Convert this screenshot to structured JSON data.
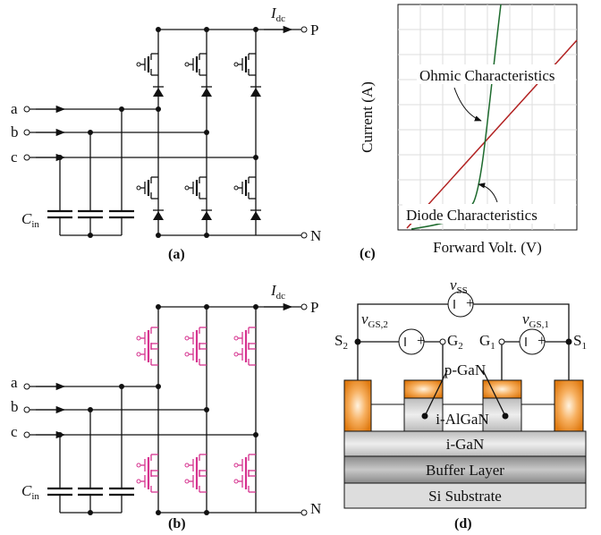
{
  "panel_a": {
    "label": "(a)",
    "current": {
      "main": "I",
      "sub": "dc"
    },
    "p": "P",
    "n": "N",
    "inputs": [
      "a",
      "b",
      "c"
    ],
    "cap": {
      "main": "C",
      "sub": "in"
    }
  },
  "panel_b": {
    "label": "(b)",
    "current": {
      "main": "I",
      "sub": "dc"
    },
    "p": "P",
    "n": "N",
    "inputs": [
      "a",
      "b",
      "c"
    ],
    "cap": {
      "main": "C",
      "sub": "in"
    }
  },
  "panel_c": {
    "label": "(c)",
    "y_label": "Current (A)",
    "x_label": "Forward Volt. (V)",
    "annotations": [
      "Ohmic Characteristics",
      "Diode Characteristics"
    ]
  },
  "panel_d": {
    "label": "(d)",
    "plus": "+",
    "sources": [
      {
        "main": "v",
        "sub": "SS"
      },
      {
        "main": "v",
        "sub": "GS,2"
      },
      {
        "main": "v",
        "sub": "GS,1"
      }
    ],
    "terminals": [
      {
        "main": "S",
        "sub": "2"
      },
      {
        "main": "G",
        "sub": "2"
      },
      {
        "main": "G",
        "sub": "1"
      },
      {
        "main": "S",
        "sub": "1"
      }
    ],
    "layers": [
      "p-GaN",
      "i-AlGaN",
      "i-GaN",
      "Buffer Layer",
      "Si Substrate"
    ]
  }
}
